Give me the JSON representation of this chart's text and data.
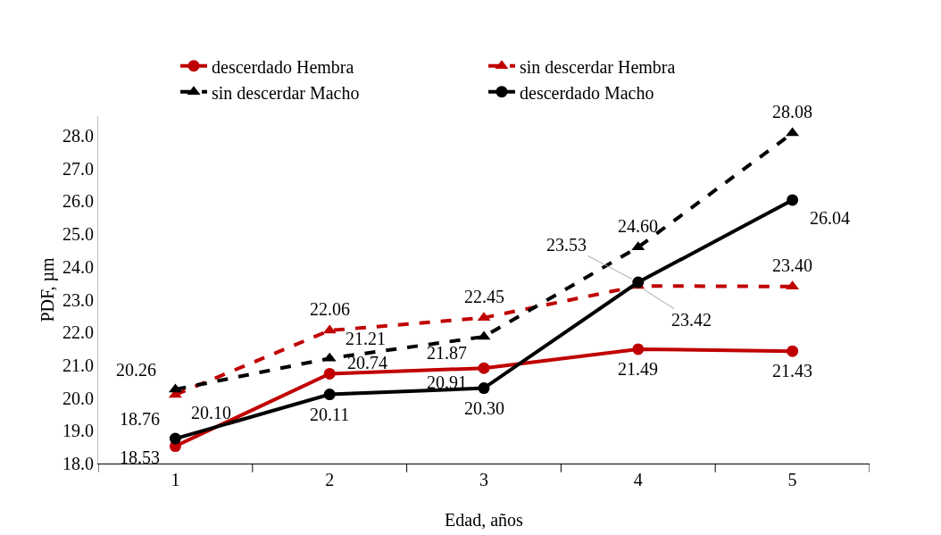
{
  "chart_data": {
    "type": "line",
    "xlabel": "Edad, años",
    "ylabel": "PDF, µm",
    "categories": [
      "1",
      "2",
      "3",
      "4",
      "5"
    ],
    "series": [
      {
        "name": "descerdado Hembra",
        "color": "#c00000",
        "marker": "circle",
        "line_style": "solid",
        "values": [
          18.53,
          20.74,
          20.91,
          21.49,
          21.43
        ],
        "value_labels": [
          "18.53",
          "20.74",
          "20.91",
          "21.49",
          "21.43"
        ]
      },
      {
        "name": "sin descerdar Hembra",
        "color": "#c00000",
        "marker": "triangle",
        "line_style": "dashed",
        "values": [
          20.1,
          22.06,
          22.45,
          23.42,
          23.4
        ],
        "value_labels": [
          "20.10",
          "22.06",
          "22.45",
          "23.42",
          "23.40"
        ]
      },
      {
        "name": "sin descerdar Macho",
        "color": "#000000",
        "marker": "triangle",
        "line_style": "dashed",
        "values": [
          20.26,
          21.21,
          21.87,
          24.6,
          28.08
        ],
        "value_labels": [
          "20.26",
          "21.21",
          "21.87",
          "24.60",
          "28.08"
        ]
      },
      {
        "name": "descerdado Macho",
        "color": "#000000",
        "marker": "circle",
        "line_style": "solid",
        "values": [
          18.76,
          20.11,
          20.3,
          23.53,
          26.04
        ],
        "value_labels": [
          "18.76",
          "20.11",
          "20.30",
          "23.53",
          "26.04"
        ]
      }
    ],
    "ylim": [
      18,
      28.6
    ],
    "yticks": [
      {
        "value": 18,
        "label": "18.0"
      },
      {
        "value": 19,
        "label": "19.0"
      },
      {
        "value": 20,
        "label": "20.0"
      },
      {
        "value": 21,
        "label": "21.0"
      },
      {
        "value": 22,
        "label": "22.0"
      },
      {
        "value": 23,
        "label": "23.0"
      },
      {
        "value": 24,
        "label": "24.0"
      },
      {
        "value": 25,
        "label": "25.0"
      },
      {
        "value": 26,
        "label": "26.0"
      },
      {
        "value": 27,
        "label": "27.0"
      },
      {
        "value": 28,
        "label": "28.0"
      }
    ],
    "legend": "top",
    "grid": false
  }
}
